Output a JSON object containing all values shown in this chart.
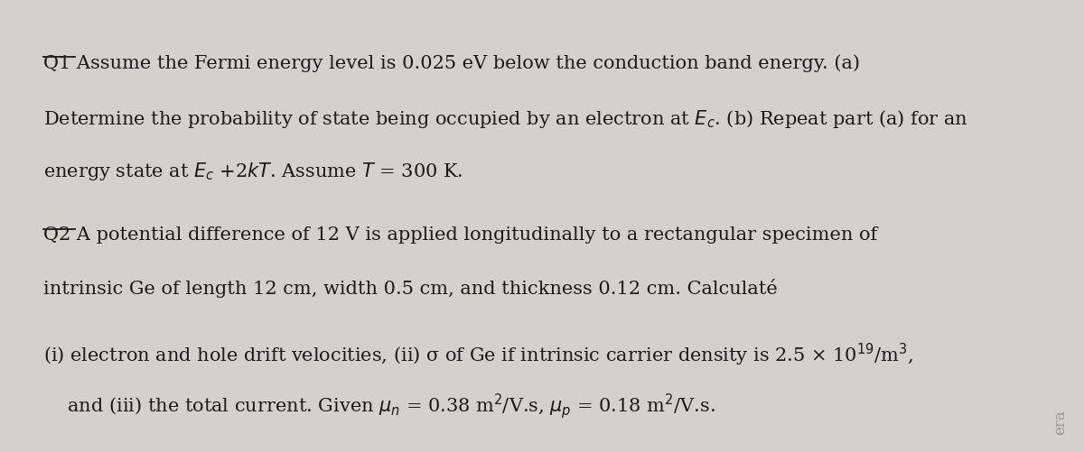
{
  "bg_color": "#d4d0cc",
  "text_color": "#1a1a1a",
  "fig_width": 12.0,
  "fig_height": 5.02,
  "q1_label": "Q1",
  "q1_line1": " Assume the Fermi energy level is 0.025 eV below the conduction band energy. (a)",
  "q1_line2": "Determine the probability of state being occupied by an electron at $E_c$. (b) Repeat part (a) for an",
  "q1_line3": "energy state at $E_c$ +2$kT$. Assume $T$ = 300 K.",
  "q2_label": "Q2",
  "q2_line1": " A potential difference of 12 V is applied longitudinally to a rectangular specimen of",
  "q2_line2": "intrinsic Ge of length 12 cm, width 0.5 cm, and thickness 0.12 cm. Calculaté",
  "q3_line1": "(i) electron and hole drift velocities, (ii) σ of Ge if intrinsic carrier density is 2.5 × 10$^{19}$/m$^3$,",
  "q3_line2": "    and (iii) the total current. Given $\\mu_n$ = 0.38 m$^2$/V.s, $\\mu_p$ = 0.18 m$^2$/V.s.",
  "watermark": "era",
  "fontsize": 15.0,
  "fontfamily": "DejaVu Serif"
}
